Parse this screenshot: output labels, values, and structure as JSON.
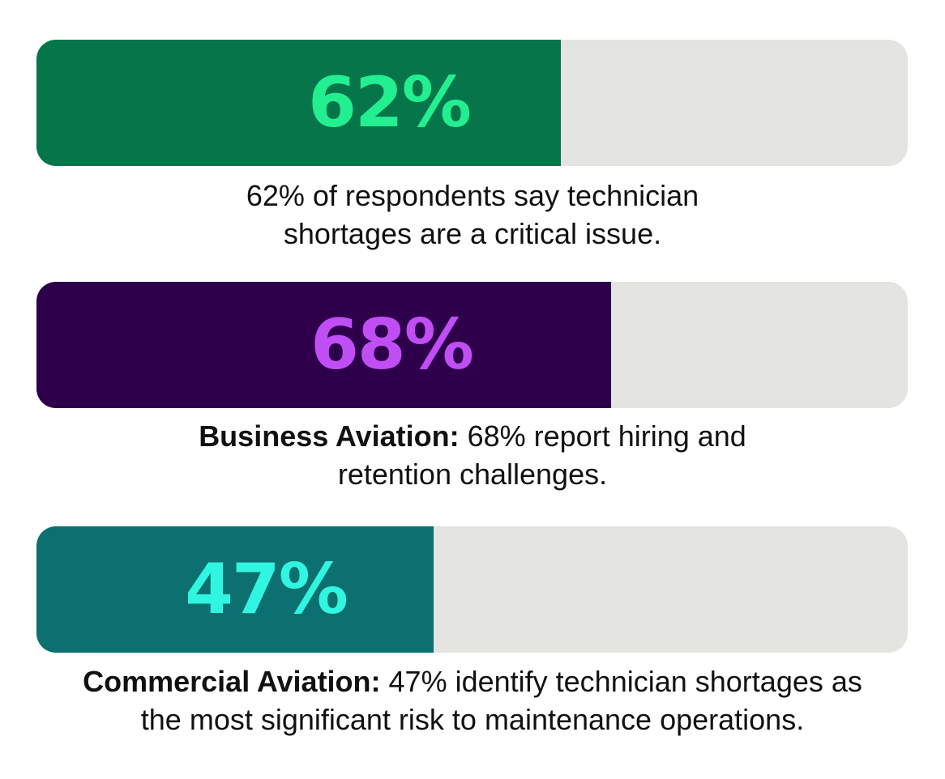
{
  "chart_data": {
    "type": "bar",
    "orientation": "horizontal",
    "ylim": [
      0,
      100
    ],
    "track_color": "#e4e4e0",
    "bars": [
      {
        "value": 62,
        "label": "62%",
        "fill_color": "#06754a",
        "text_color": "#22f090",
        "caption_bold": "",
        "caption": "62% of respondents say technician shortages are a critical issue."
      },
      {
        "value": 68,
        "label": "68%",
        "fill_color": "#2e004b",
        "text_color": "#c04ef5",
        "caption_bold": "Business Aviation:",
        "caption": " 68% report hiring and retention challenges."
      },
      {
        "value": 47,
        "label": "47%",
        "fill_color": "#0d7070",
        "text_color": "#30f5e0",
        "caption_bold": "Commercial Aviation:",
        "caption": " 47% identify technician shortages as the most significant risk to maintenance operations."
      }
    ]
  }
}
